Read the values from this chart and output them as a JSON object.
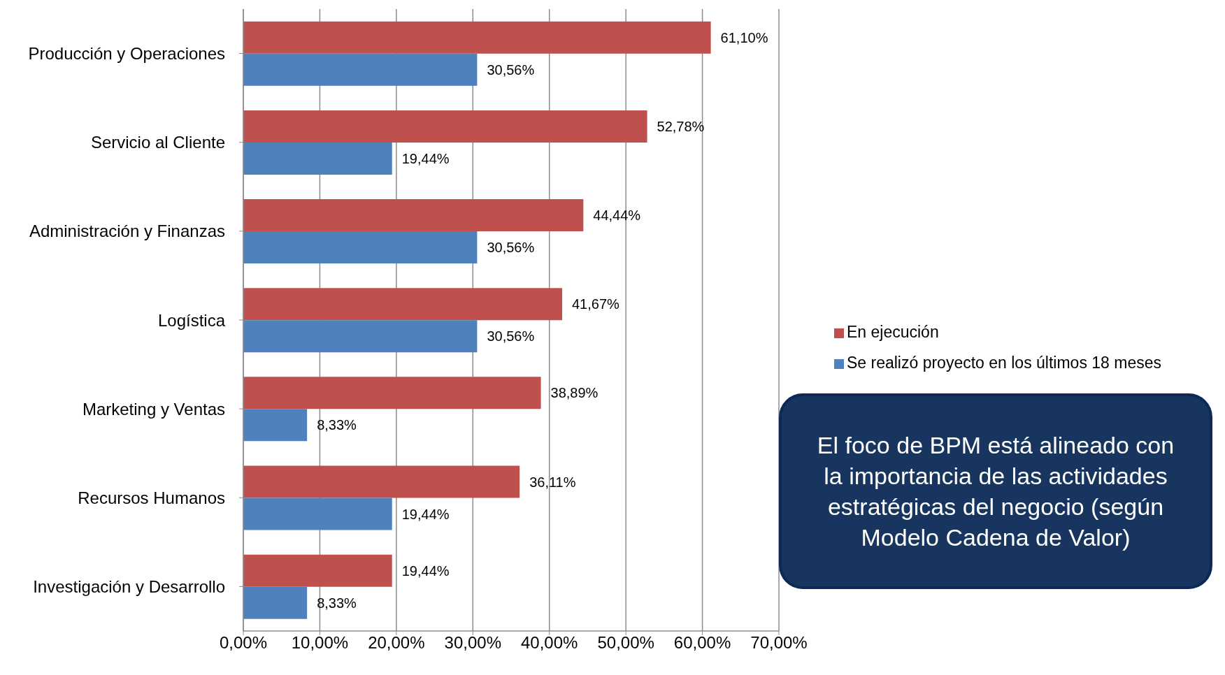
{
  "chart_data": {
    "type": "bar",
    "orientation": "horizontal",
    "categories": [
      "Producción y Operaciones",
      "Servicio al Cliente",
      "Administración y Finanzas",
      "Logística",
      "Marketing y Ventas",
      "Recursos Humanos",
      "Investigación y Desarrollo"
    ],
    "series": [
      {
        "name": "En ejecución",
        "color": "#c0504d",
        "values": [
          61.1,
          52.78,
          44.44,
          41.67,
          38.89,
          36.11,
          19.44
        ],
        "value_labels": [
          "61,10%",
          "52,78%",
          "44,44%",
          "41,67%",
          "38,89%",
          "36,11%",
          "19,44%"
        ]
      },
      {
        "name": "Se realizó proyecto en los últimos 18 meses",
        "color": "#4f81bd",
        "values": [
          30.56,
          19.44,
          30.56,
          30.56,
          8.33,
          19.44,
          8.33
        ],
        "value_labels": [
          "30,56%",
          "19,44%",
          "30,56%",
          "30,56%",
          "8,33%",
          "19,44%",
          "8,33%"
        ]
      }
    ],
    "xlim": [
      0,
      70
    ],
    "xticks": [
      {
        "value": 0,
        "label": "0,00%"
      },
      {
        "value": 10,
        "label": "10,00%"
      },
      {
        "value": 20,
        "label": "20,00%"
      },
      {
        "value": 30,
        "label": "30,00%"
      },
      {
        "value": 40,
        "label": "40,00%"
      },
      {
        "value": 50,
        "label": "50,00%"
      },
      {
        "value": 60,
        "label": "60,00%"
      },
      {
        "value": 70,
        "label": "70,00%"
      }
    ],
    "grid": "x",
    "legend": "right",
    "annotations": [
      "El foco de BPM está alineado con la importancia de las actividades estratégicas del negocio (según Modelo Cadena de Valor)"
    ]
  }
}
